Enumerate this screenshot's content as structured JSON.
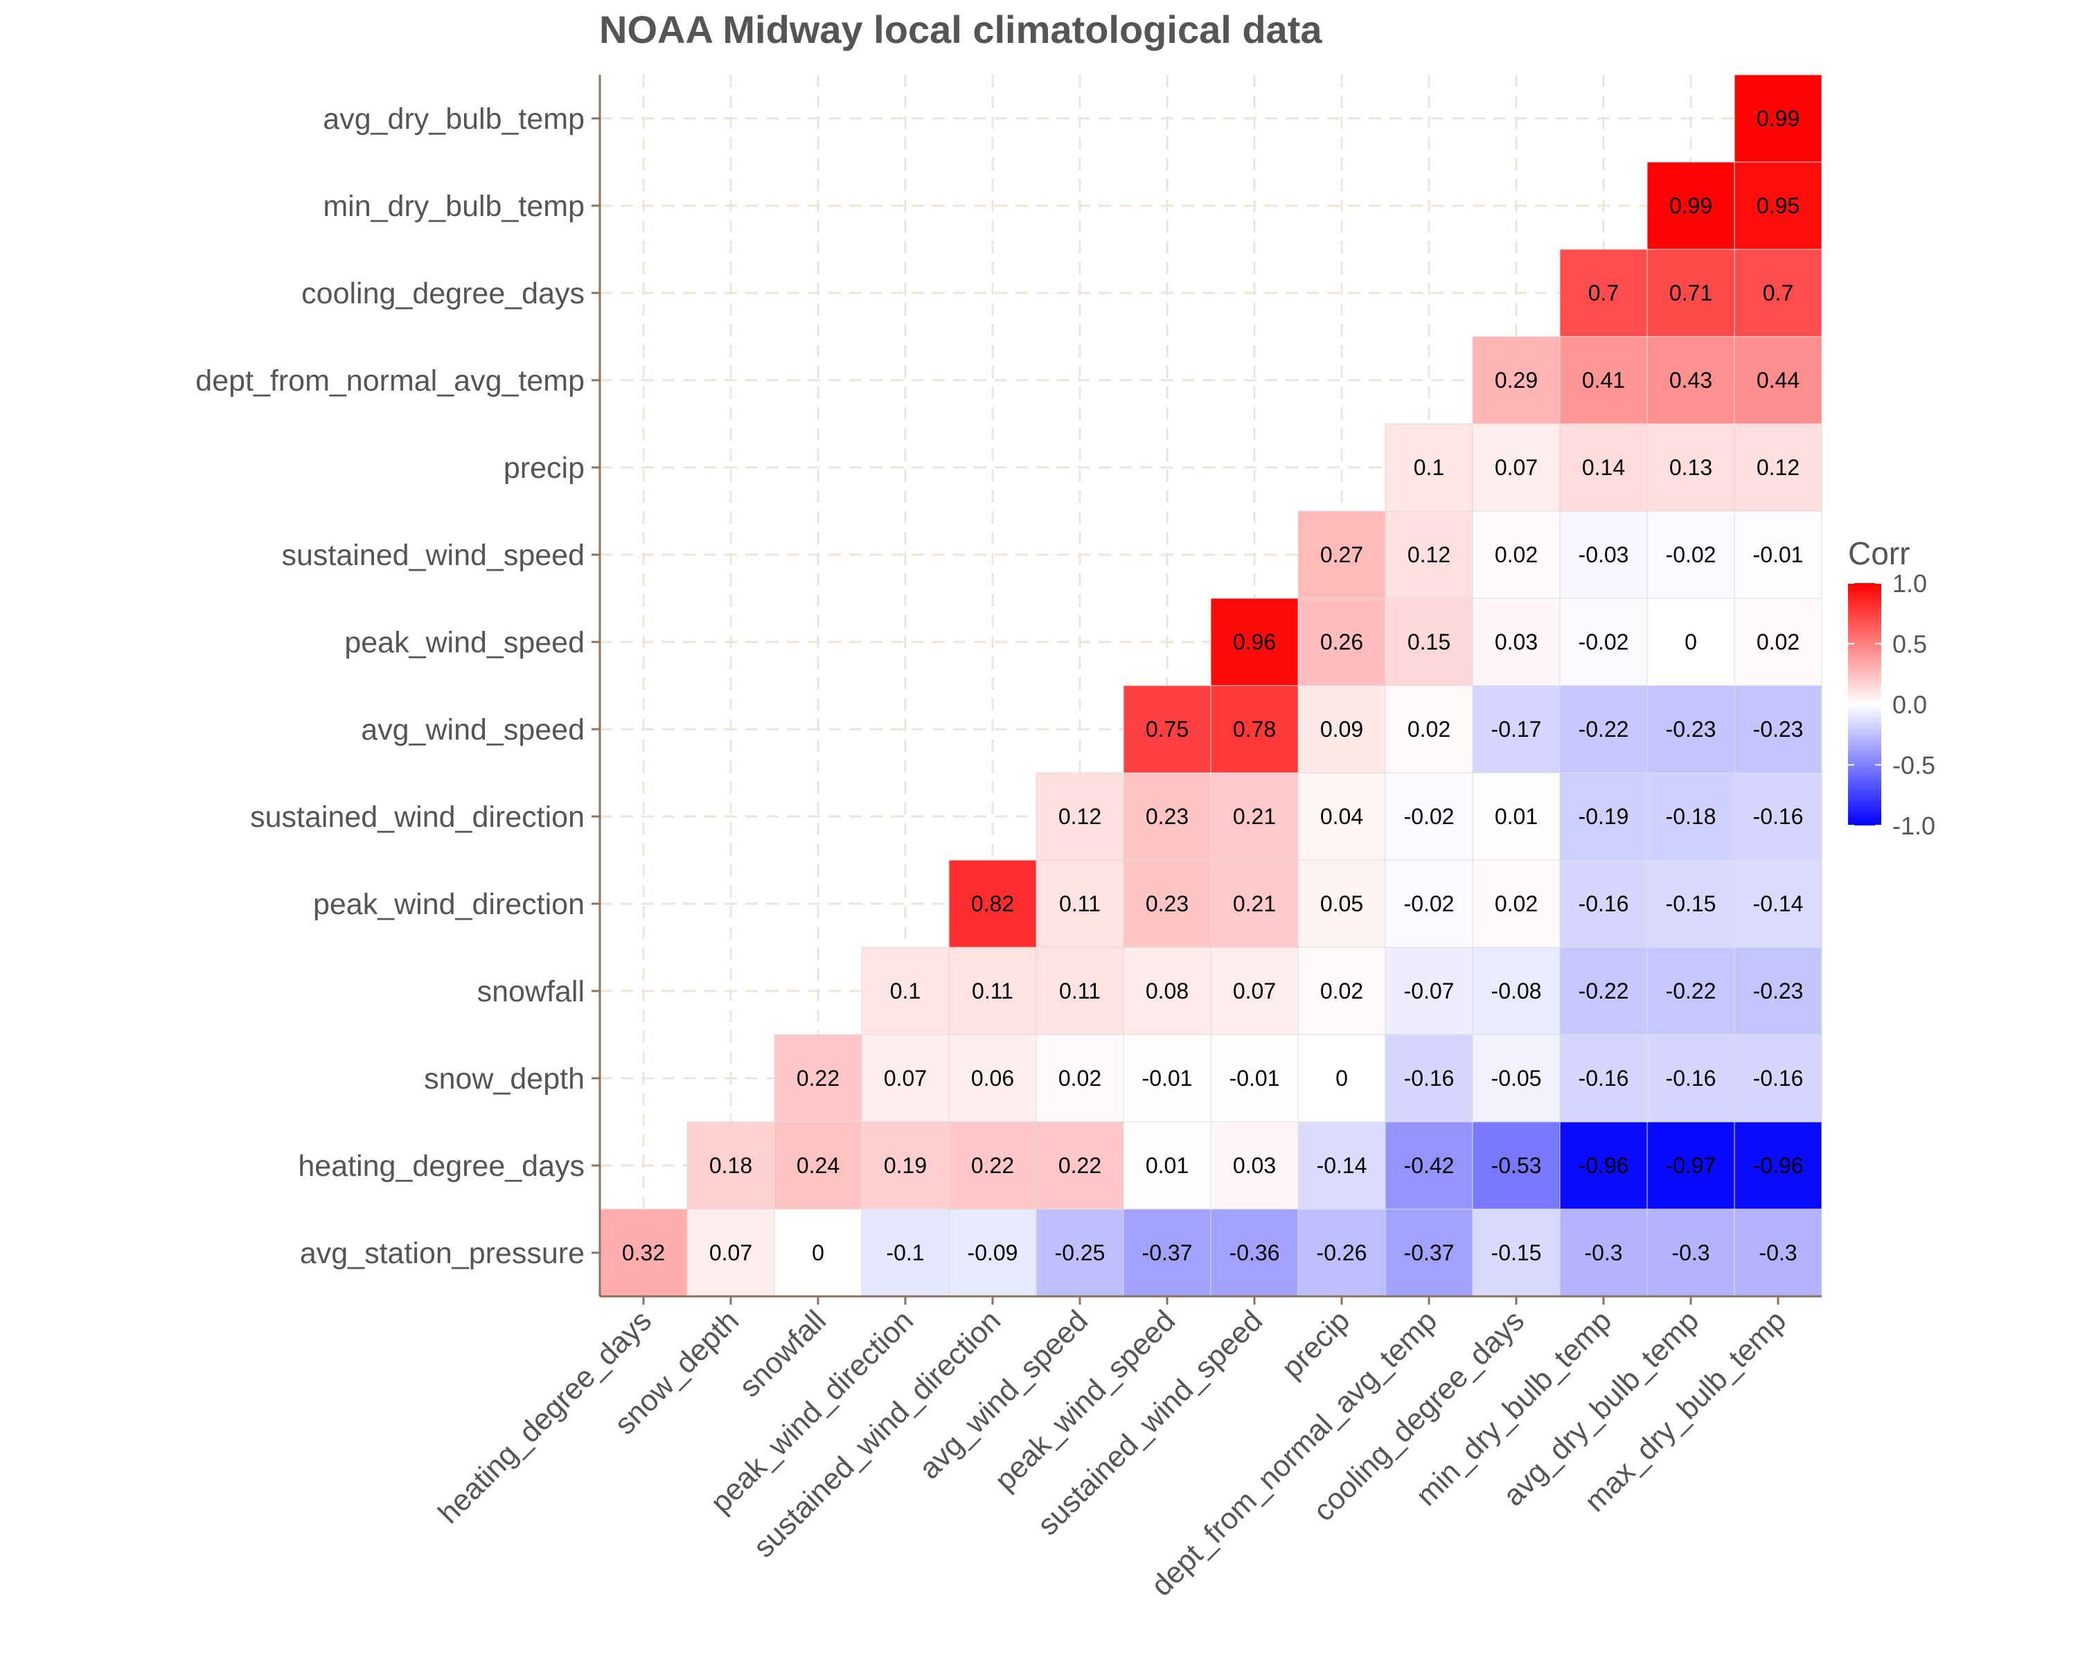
{
  "chart_data": {
    "type": "heatmap",
    "title": "NOAA Midway local climatological data",
    "x_categories": [
      "heating_degree_days",
      "snow_depth",
      "snowfall",
      "peak_wind_direction",
      "sustained_wind_direction",
      "avg_wind_speed",
      "peak_wind_speed",
      "sustained_wind_speed",
      "precip",
      "dept_from_normal_avg_temp",
      "cooling_degree_days",
      "min_dry_bulb_temp",
      "avg_dry_bulb_temp",
      "max_dry_bulb_temp"
    ],
    "y_categories": [
      "avg_station_pressure",
      "heating_degree_days",
      "snow_depth",
      "snowfall",
      "peak_wind_direction",
      "sustained_wind_direction",
      "avg_wind_speed",
      "peak_wind_speed",
      "sustained_wind_speed",
      "precip",
      "dept_from_normal_avg_temp",
      "cooling_degree_days",
      "min_dry_bulb_temp",
      "avg_dry_bulb_temp"
    ],
    "values": [
      [
        0.32,
        0.07,
        0,
        -0.1,
        -0.09,
        -0.25,
        -0.37,
        -0.36,
        -0.26,
        -0.37,
        -0.15,
        -0.3,
        -0.3,
        -0.3
      ],
      [
        null,
        0.18,
        0.24,
        0.19,
        0.22,
        0.22,
        0.01,
        0.03,
        -0.14,
        -0.42,
        -0.53,
        -0.96,
        -0.97,
        -0.96
      ],
      [
        null,
        null,
        0.22,
        0.07,
        0.06,
        0.02,
        -0.01,
        -0.01,
        0,
        -0.16,
        -0.05,
        -0.16,
        -0.16,
        -0.16
      ],
      [
        null,
        null,
        null,
        0.1,
        0.11,
        0.11,
        0.08,
        0.07,
        0.02,
        -0.07,
        -0.08,
        -0.22,
        -0.22,
        -0.23
      ],
      [
        null,
        null,
        null,
        null,
        0.82,
        0.11,
        0.23,
        0.21,
        0.05,
        -0.02,
        0.02,
        -0.16,
        -0.15,
        -0.14
      ],
      [
        null,
        null,
        null,
        null,
        null,
        0.12,
        0.23,
        0.21,
        0.04,
        -0.02,
        0.01,
        -0.19,
        -0.18,
        -0.16
      ],
      [
        null,
        null,
        null,
        null,
        null,
        null,
        0.75,
        0.78,
        0.09,
        0.02,
        -0.17,
        -0.22,
        -0.23,
        -0.23
      ],
      [
        null,
        null,
        null,
        null,
        null,
        null,
        null,
        0.96,
        0.26,
        0.15,
        0.03,
        -0.02,
        0,
        0.02
      ],
      [
        null,
        null,
        null,
        null,
        null,
        null,
        null,
        null,
        0.27,
        0.12,
        0.02,
        -0.03,
        -0.02,
        -0.01
      ],
      [
        null,
        null,
        null,
        null,
        null,
        null,
        null,
        null,
        null,
        0.1,
        0.07,
        0.14,
        0.13,
        0.12
      ],
      [
        null,
        null,
        null,
        null,
        null,
        null,
        null,
        null,
        null,
        null,
        0.29,
        0.41,
        0.43,
        0.44
      ],
      [
        null,
        null,
        null,
        null,
        null,
        null,
        null,
        null,
        null,
        null,
        null,
        0.7,
        0.71,
        0.7
      ],
      [
        null,
        null,
        null,
        null,
        null,
        null,
        null,
        null,
        null,
        null,
        null,
        null,
        0.99,
        0.95
      ],
      [
        null,
        null,
        null,
        null,
        null,
        null,
        null,
        null,
        null,
        null,
        null,
        null,
        null,
        0.99
      ]
    ],
    "range": [
      -1,
      1
    ],
    "grid": true,
    "legend": {
      "title": "Corr",
      "placement": "right",
      "ticks": [
        1.0,
        0.5,
        0.0,
        -0.5,
        -1.0
      ],
      "tick_labels": [
        "1.0",
        "0.5",
        "0.0",
        "-0.5",
        "-1.0"
      ]
    },
    "colors": {
      "low": "#0000ff",
      "mid": "#ffffff",
      "high": "#ff0000"
    }
  }
}
